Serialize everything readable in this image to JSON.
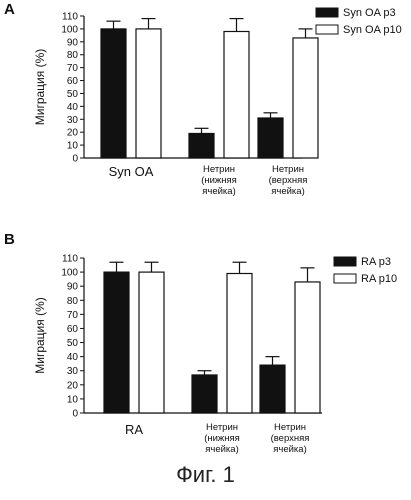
{
  "chart_data": [
    {
      "panel_label": "A",
      "type": "bar",
      "ylabel": "Миграция (%)",
      "ylim": [
        0,
        110
      ],
      "yticks": [
        0,
        10,
        20,
        30,
        40,
        50,
        60,
        70,
        80,
        90,
        100,
        110
      ],
      "categories": [
        "Syn OA",
        "Нетрин\n(нижняя\nячейка)",
        "Нетрин\n(верхняя\nячейка)"
      ],
      "series": [
        {
          "name": "Syn OA p3",
          "fill": "#111111",
          "values": [
            100,
            19,
            31
          ],
          "errors": [
            6,
            4,
            4
          ]
        },
        {
          "name": "Syn OA p10",
          "fill": "#ffffff",
          "values": [
            100,
            98,
            93
          ],
          "errors": [
            8,
            10,
            7
          ]
        }
      ],
      "legend_position": "right"
    },
    {
      "panel_label": "B",
      "type": "bar",
      "ylabel": "Миграция (%)",
      "ylim": [
        0,
        110
      ],
      "yticks": [
        0,
        10,
        20,
        30,
        40,
        50,
        60,
        70,
        80,
        90,
        100,
        110
      ],
      "categories": [
        "RA",
        "Нетрин\n(нижняя\nячейка)",
        "Нетрин\n(верхняя\nячейка)"
      ],
      "series": [
        {
          "name": "RA p3",
          "fill": "#111111",
          "values": [
            100,
            27,
            34
          ],
          "errors": [
            7,
            3,
            6
          ]
        },
        {
          "name": "RA p10",
          "fill": "#ffffff",
          "values": [
            100,
            99,
            93
          ],
          "errors": [
            7,
            8,
            10
          ]
        }
      ],
      "legend_position": "right"
    }
  ],
  "figure_caption": "Фиг. 1"
}
